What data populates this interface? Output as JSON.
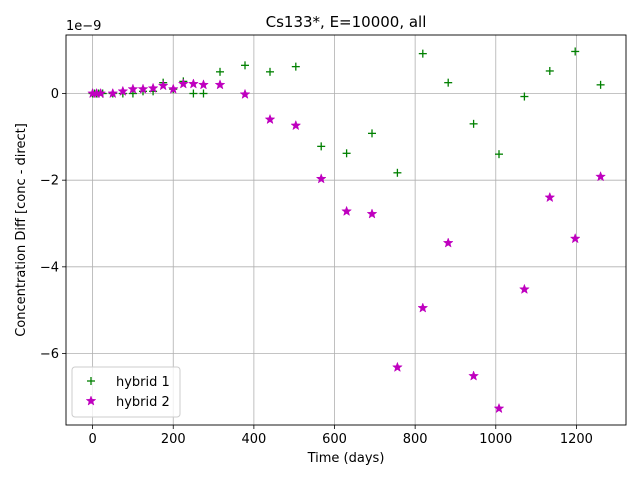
{
  "chart_data": {
    "type": "scatter",
    "title": "Cs133*, E=10000, all",
    "xlabel": "Time (days)",
    "ylabel": "Concentration Diff [conc - direct]",
    "scale_label": "1e−9",
    "xlim": [
      -66,
      1323
    ],
    "ylim": [
      -7.65,
      1.35
    ],
    "xticks": [
      0,
      200,
      400,
      600,
      800,
      1000,
      1200
    ],
    "xtick_labels": [
      "0",
      "200",
      "400",
      "600",
      "800",
      "1000",
      "1200"
    ],
    "yticks": [
      0,
      -2,
      -4,
      -6
    ],
    "ytick_labels": [
      "0",
      "−2",
      "−4",
      "−6"
    ],
    "grid": true,
    "legend_position": "lower-left",
    "series": [
      {
        "name": "hybrid 1",
        "marker": "plus",
        "color": "#008000",
        "x": [
          0,
          5,
          10,
          15,
          25,
          50,
          75,
          100,
          125,
          150,
          175,
          200,
          225,
          250,
          275,
          316,
          378,
          440,
          504,
          567,
          630,
          693,
          756,
          819,
          882,
          945,
          1008,
          1071,
          1134,
          1197,
          1260
        ],
        "y": [
          0.0,
          0.0,
          0.0,
          0.0,
          0.0,
          0.0,
          0.0,
          0.0,
          0.05,
          0.05,
          0.25,
          0.1,
          0.28,
          0.0,
          0.0,
          0.5,
          0.65,
          0.5,
          0.62,
          -1.22,
          -1.38,
          -0.92,
          -1.83,
          0.92,
          0.25,
          -0.7,
          -1.4,
          -0.07,
          0.52,
          0.97,
          0.2
        ]
      },
      {
        "name": "hybrid 2",
        "marker": "star",
        "color": "#bf00bf",
        "x": [
          0,
          10,
          20,
          50,
          75,
          100,
          125,
          150,
          175,
          200,
          225,
          250,
          275,
          316,
          378,
          440,
          504,
          567,
          630,
          693,
          756,
          819,
          882,
          945,
          1008,
          1071,
          1134,
          1197,
          1260
        ],
        "y": [
          0.0,
          0.0,
          0.0,
          0.0,
          0.05,
          0.1,
          0.1,
          0.12,
          0.18,
          0.1,
          0.22,
          0.22,
          0.2,
          0.2,
          -0.02,
          -0.6,
          -0.74,
          -1.97,
          -2.72,
          -2.78,
          -6.32,
          -4.95,
          -3.45,
          -6.52,
          -7.27,
          -4.52,
          -2.4,
          -3.35,
          -1.92
        ]
      }
    ]
  }
}
